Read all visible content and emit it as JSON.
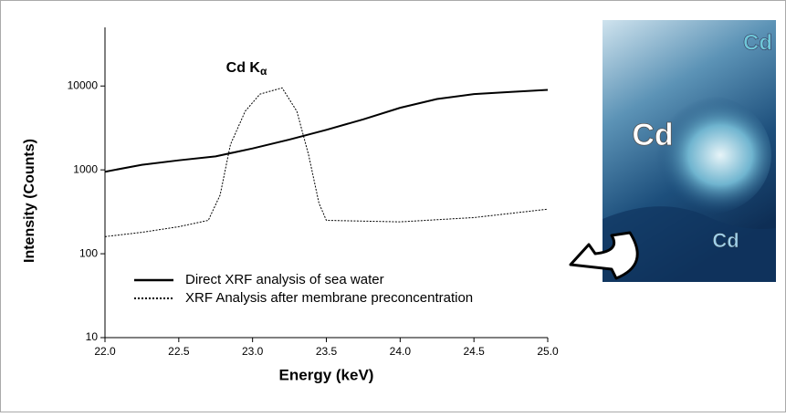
{
  "chart_data": {
    "type": "line",
    "xlabel": "Energy (keV)",
    "ylabel": "Intensity (Counts)",
    "annotation": {
      "text": "Cd K",
      "subscript": "α"
    },
    "log_y": true,
    "xlim": [
      22.0,
      25.0
    ],
    "xticks": [
      {
        "value": 22,
        "label": "22.0"
      },
      {
        "value": 22.5,
        "label": "22.5"
      },
      {
        "value": 23,
        "label": "23.0"
      },
      {
        "value": 23.5,
        "label": "23.5"
      },
      {
        "value": 24,
        "label": "24.0"
      },
      {
        "value": 24.5,
        "label": "24.5"
      },
      {
        "value": 25,
        "label": "25.0"
      }
    ],
    "ylim": [
      10,
      50000
    ],
    "yticks": [
      10,
      100,
      1000,
      10000
    ],
    "series": [
      {
        "name": "Direct XRF analysis of sea water",
        "color": "#000000",
        "style": "solid",
        "x": [
          22.0,
          22.25,
          22.5,
          22.75,
          23.0,
          23.25,
          23.5,
          23.75,
          24.0,
          24.25,
          24.5,
          24.75,
          25.0
        ],
        "values": [
          950,
          1150,
          1300,
          1450,
          1800,
          2300,
          3000,
          4000,
          5500,
          7000,
          8000,
          8500,
          9000
        ]
      },
      {
        "name": "XRF Analysis after membrane preconcentration",
        "color": "#000000",
        "style": "dotted",
        "x": [
          22.0,
          22.25,
          22.5,
          22.7,
          22.78,
          22.85,
          22.95,
          23.05,
          23.2,
          23.3,
          23.38,
          23.45,
          23.5,
          24.0,
          24.5,
          25.0
        ],
        "values": [
          160,
          180,
          210,
          250,
          500,
          2000,
          5000,
          8000,
          9500,
          5000,
          1500,
          400,
          250,
          240,
          270,
          340
        ]
      }
    ]
  },
  "image_labels": [
    "Cd",
    "Cd",
    "Cd"
  ]
}
